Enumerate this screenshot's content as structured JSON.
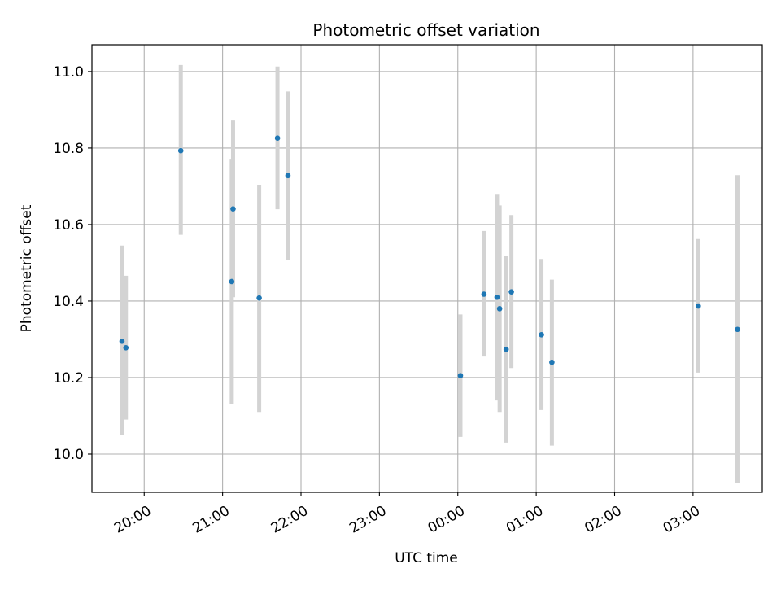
{
  "chart_data": {
    "type": "scatter",
    "title": "Photometric offset variation",
    "xlabel": "UTC time",
    "ylabel": "Photometric offset",
    "x_axis_kind": "time",
    "xlim": [
      "19:20",
      "03:53"
    ],
    "ylim": [
      9.9,
      11.07
    ],
    "xticks": [
      "20:00",
      "21:00",
      "22:00",
      "23:00",
      "00:00",
      "01:00",
      "02:00",
      "03:00"
    ],
    "yticks": [
      "10.0",
      "10.2",
      "10.4",
      "10.6",
      "10.8",
      "11.0"
    ],
    "grid": true,
    "colors": {
      "marker": "#1f77b4",
      "errorbar": "#d3d3d3",
      "grid": "#b0b0b0"
    },
    "points": [
      {
        "x": "19:43",
        "y": 10.295,
        "err_low": 10.05,
        "err_high": 10.545
      },
      {
        "x": "19:46",
        "y": 10.278,
        "err_low": 10.09,
        "err_high": 10.466
      },
      {
        "x": "20:28",
        "y": 10.793,
        "err_low": 10.573,
        "err_high": 11.017
      },
      {
        "x": "21:07",
        "y": 10.451,
        "err_low": 10.13,
        "err_high": 10.772
      },
      {
        "x": "21:08",
        "y": 10.641,
        "err_low": 10.41,
        "err_high": 10.872
      },
      {
        "x": "21:28",
        "y": 10.408,
        "err_low": 10.11,
        "err_high": 10.704
      },
      {
        "x": "21:42",
        "y": 10.826,
        "err_low": 10.64,
        "err_high": 11.013
      },
      {
        "x": "21:50",
        "y": 10.728,
        "err_low": 10.508,
        "err_high": 10.948
      },
      {
        "x": "00:02",
        "y": 10.205,
        "err_low": 10.045,
        "err_high": 10.365
      },
      {
        "x": "00:20",
        "y": 10.418,
        "err_low": 10.255,
        "err_high": 10.583
      },
      {
        "x": "00:30",
        "y": 10.41,
        "err_low": 10.14,
        "err_high": 10.678
      },
      {
        "x": "00:32",
        "y": 10.38,
        "err_low": 10.11,
        "err_high": 10.65
      },
      {
        "x": "00:37",
        "y": 10.274,
        "err_low": 10.03,
        "err_high": 10.518
      },
      {
        "x": "00:41",
        "y": 10.424,
        "err_low": 10.225,
        "err_high": 10.625
      },
      {
        "x": "01:04",
        "y": 10.312,
        "err_low": 10.115,
        "err_high": 10.51
      },
      {
        "x": "01:12",
        "y": 10.24,
        "err_low": 10.022,
        "err_high": 10.456
      },
      {
        "x": "03:04",
        "y": 10.387,
        "err_low": 10.213,
        "err_high": 10.562
      },
      {
        "x": "03:34",
        "y": 10.326,
        "err_low": 9.925,
        "err_high": 10.729
      }
    ]
  }
}
